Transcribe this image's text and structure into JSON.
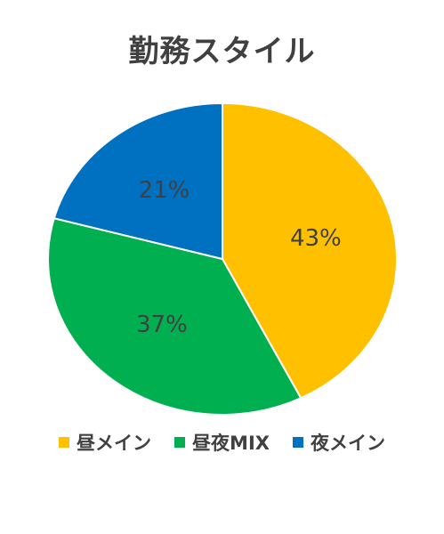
{
  "chart_data": {
    "type": "pie",
    "title": "勤務スタイル",
    "categories": [
      "昼メイン",
      "昼夜MIX",
      "夜メイン"
    ],
    "values": [
      43,
      37,
      21
    ],
    "data_labels": [
      "43%",
      "37%",
      "21%"
    ],
    "colors": [
      "#FFC000",
      "#00B050",
      "#0070C0"
    ],
    "legend_position": "bottom"
  }
}
